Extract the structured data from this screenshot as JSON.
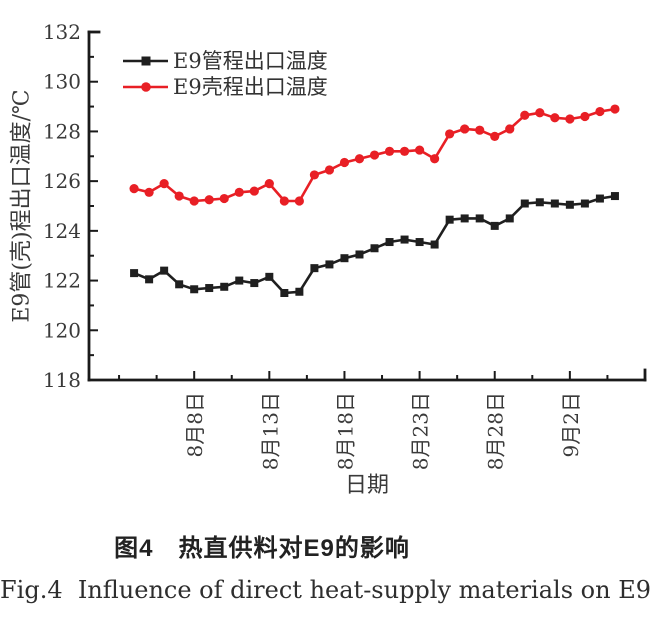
{
  "figure": {
    "caption_zh": "图4　热直供料对E9的影响",
    "caption_en": "Fig.4  Influence of direct heat-supply materials on E9"
  },
  "colors": {
    "axis": "#1a1a1a",
    "text": "#3a3a3a",
    "series_tube": "#1f1f1f",
    "series_shell": "#e81f25"
  },
  "chart_data": {
    "type": "line",
    "title": "",
    "xlabel": "日期",
    "ylabel": "E9管(壳)程出口温度/℃",
    "ylim": [
      118,
      132
    ],
    "y_major_tick_step": 2,
    "y_minor_tick_step": 1,
    "grid": false,
    "legend_position": "top-left-inside",
    "x_axis_labels_shown": [
      "8月8日",
      "8月13日",
      "8月18日",
      "8月23日",
      "8月28日",
      "9月2日"
    ],
    "x": [
      "8月4日",
      "8月5日",
      "8月6日",
      "8月7日",
      "8月8日",
      "8月9日",
      "8月10日",
      "8月11日",
      "8月12日",
      "8月13日",
      "8月14日",
      "8月15日",
      "8月16日",
      "8月17日",
      "8月18日",
      "8月19日",
      "8月20日",
      "8月21日",
      "8月22日",
      "8月23日",
      "8月24日",
      "8月25日",
      "8月26日",
      "8月27日",
      "8月28日",
      "8月29日",
      "8月30日",
      "8月31日",
      "9月1日",
      "9月2日",
      "9月3日",
      "9月4日",
      "9月5日"
    ],
    "series": [
      {
        "name": "E9管程出口温度",
        "color": "#1f1f1f",
        "marker": "square",
        "values": [
          122.3,
          122.05,
          122.4,
          121.85,
          121.65,
          121.7,
          121.75,
          122.0,
          121.9,
          122.15,
          121.5,
          121.55,
          122.5,
          122.65,
          122.9,
          123.05,
          123.3,
          123.55,
          123.65,
          123.55,
          123.45,
          124.45,
          124.5,
          124.5,
          124.2,
          124.5,
          125.1,
          125.15,
          125.1,
          125.05,
          125.1,
          125.3,
          125.4
        ]
      },
      {
        "name": "E9壳程出口温度",
        "color": "#e81f25",
        "marker": "circle",
        "values": [
          125.7,
          125.55,
          125.9,
          125.4,
          125.2,
          125.25,
          125.3,
          125.55,
          125.6,
          125.9,
          125.2,
          125.2,
          126.25,
          126.45,
          126.75,
          126.9,
          127.05,
          127.2,
          127.2,
          127.25,
          126.9,
          127.9,
          128.1,
          128.05,
          127.8,
          128.1,
          128.65,
          128.75,
          128.55,
          128.5,
          128.6,
          128.8,
          128.9
        ]
      }
    ]
  }
}
